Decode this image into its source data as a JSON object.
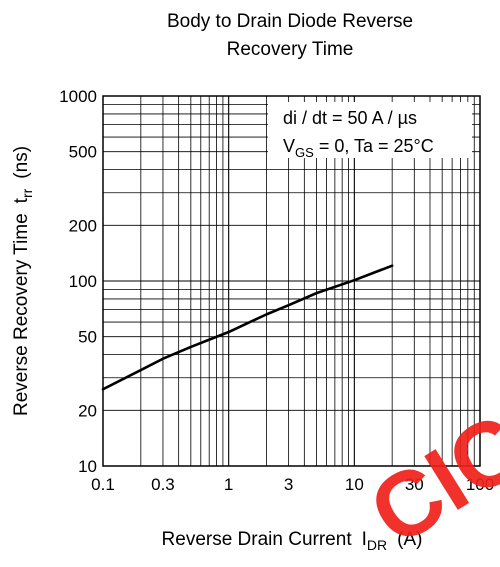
{
  "chart_data": {
    "type": "line",
    "title_lines": [
      "Body to Drain Diode Reverse",
      "Recovery Time"
    ],
    "xlabel": "Reverse Drain Current",
    "xlabel_symbol": "I",
    "xlabel_sub": "DR",
    "xlabel_unit": "(A)",
    "ylabel": "Reverse Recovery Time",
    "ylabel_symbol": "t",
    "ylabel_sub": "rr",
    "ylabel_unit": "(ns)",
    "xscale": "log",
    "yscale": "log",
    "xlim": [
      0.1,
      100
    ],
    "ylim": [
      10,
      1000
    ],
    "grid": true,
    "x_ticks": [
      {
        "v": 0.1,
        "label": "0.1"
      },
      {
        "v": 0.3,
        "label": "0.3"
      },
      {
        "v": 1,
        "label": "1"
      },
      {
        "v": 3,
        "label": "3"
      },
      {
        "v": 10,
        "label": "10"
      },
      {
        "v": 30,
        "label": "30"
      },
      {
        "v": 100,
        "label": "100"
      }
    ],
    "y_ticks": [
      {
        "v": 10,
        "label": "10"
      },
      {
        "v": 20,
        "label": "20"
      },
      {
        "v": 50,
        "label": "50"
      },
      {
        "v": 100,
        "label": "100"
      },
      {
        "v": 200,
        "label": "200"
      },
      {
        "v": 500,
        "label": "500"
      },
      {
        "v": 1000,
        "label": "1000"
      }
    ],
    "annotation_line1": "di / dt = 50 A / µs",
    "annotation_line2_prefix": "V",
    "annotation_line2_sub": "GS",
    "annotation_line2_rest": " = 0, Ta = 25°C",
    "series": [
      {
        "color": "#000000",
        "x": [
          0.1,
          0.2,
          0.3,
          0.5,
          1,
          2,
          3,
          5,
          10,
          20
        ],
        "y": [
          26,
          33,
          38,
          44,
          53,
          66,
          74,
          86,
          101,
          121
        ]
      }
    ]
  },
  "watermark": {
    "text": "CIC",
    "color": "#f0201a"
  }
}
